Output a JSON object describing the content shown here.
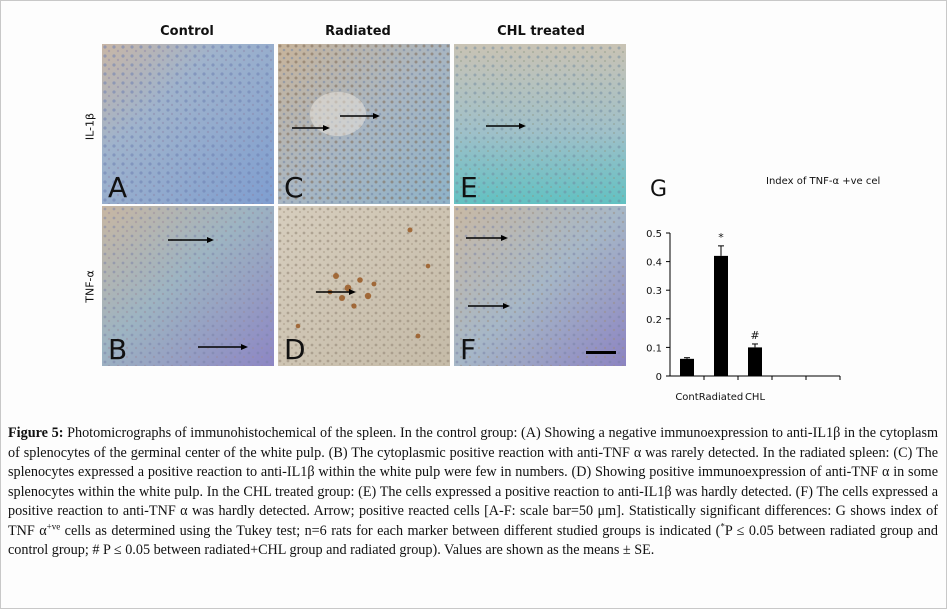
{
  "columns": [
    "Control",
    "Radiated",
    "CHL treated"
  ],
  "rows": [
    "IL-1β",
    "TNF-α"
  ],
  "panels": [
    {
      "letter": "A",
      "tone": "blue"
    },
    {
      "letter": "C",
      "tone": "blue-brown"
    },
    {
      "letter": "E",
      "tone": "blue-green"
    },
    {
      "letter": "B",
      "tone": "blue-purple"
    },
    {
      "letter": "D",
      "tone": "brown"
    },
    {
      "letter": "F",
      "tone": "blue-purple"
    }
  ],
  "chart_data": {
    "type": "bar",
    "panel_letter": "G",
    "title": "Index of TNF-α +ve cell",
    "categories": [
      "Cont",
      "Radiated",
      "CHL",
      "",
      ""
    ],
    "values": [
      0.06,
      0.42,
      0.1,
      null,
      null
    ],
    "errors": [
      0.004,
      0.035,
      0.012,
      null,
      null
    ],
    "annotations": [
      "",
      "*",
      "#",
      "",
      ""
    ],
    "yticks": [
      "0",
      "0.1",
      "0.2",
      "0.3",
      "0.4",
      "0.5"
    ],
    "ylim": [
      0,
      0.5
    ],
    "bar_color": "#000000"
  },
  "caption": {
    "label": "Figure 5:",
    "text": " Photomicrographs of immunohistochemical of the spleen. In the control group: (A) Showing a negative immunoexpression to anti-IL1β in the cytoplasm of splenocytes of the germinal center of the white pulp. (B) The cytoplasmic positive reaction with anti-TNF α was rarely detected. In the radiated spleen: (C) The splenocytes expressed a positive reaction to anti-IL1β within the white pulp were few in numbers. (D) Showing positive immunoexpression of anti-TNF α in some splenocytes within the white pulp. In the CHL treated group: (E) The cells expressed a positive reaction to anti-IL1β was hardly detected. (F) The cells expressed a positive reaction to anti-TNF α was hardly detected. Arrow; positive reacted cells [A-F: scale bar=50 μm]. Statistically significant differences: G shows index of TNF α",
    "sup1": "+ve",
    "text2": " cells as determined using the Tukey test; n=6 rats for each marker between different studied groups is indicated (",
    "sup2": "*",
    "text3": "P ≤ 0.05 between radiated group and control group; # P ≤ 0.05 between radiated+CHL group and radiated group). Values are shown as the means ± SE."
  }
}
